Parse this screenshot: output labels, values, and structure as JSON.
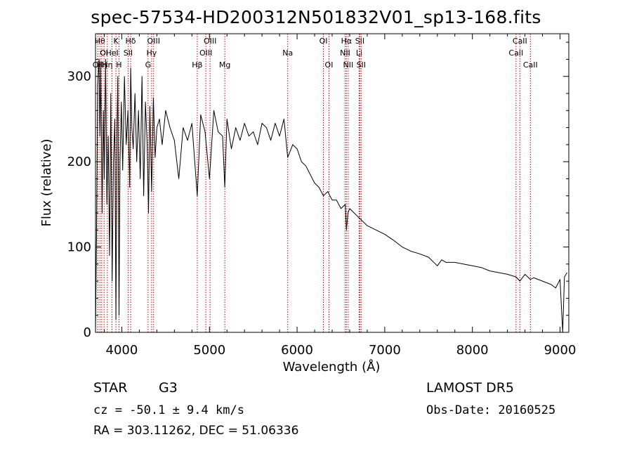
{
  "title": "spec-57534-HD200312N501832V01_sp13-168.fits",
  "info": {
    "object_type": "STAR",
    "subclass": "G3",
    "survey": "LAMOST DR5",
    "cz": "cz = -50.1 ± 9.4 km/s",
    "obs_date": "Obs-Date: 20160525",
    "coords": "RA = 303.11262, DEC =  51.06336"
  },
  "chart_data": {
    "type": "line",
    "xlabel": "Wavelength (Å)",
    "ylabel": "Flux (relative)",
    "xlim": [
      3700,
      9100
    ],
    "ylim": [
      0,
      350
    ],
    "xticks": [
      4000,
      5000,
      6000,
      7000,
      8000,
      9000
    ],
    "yticks": [
      0,
      100,
      200,
      300
    ],
    "grid": false,
    "line_color": "#000000",
    "marker_color": "#cc0000",
    "series": [
      {
        "x": [
          3700,
          3712,
          3725,
          3740,
          3750,
          3760,
          3775,
          3790,
          3800,
          3815,
          3830,
          3845,
          3860,
          3875,
          3890,
          3905,
          3920,
          3933,
          3945,
          3955,
          3968,
          3980,
          3995,
          4010,
          4030,
          4050,
          4070,
          4090,
          4101,
          4115,
          4130,
          4150,
          4170,
          4190,
          4210,
          4230,
          4250,
          4270,
          4290,
          4305,
          4320,
          4340,
          4360,
          4380,
          4400,
          4430,
          4460,
          4500,
          4550,
          4600,
          4650,
          4700,
          4750,
          4800,
          4861,
          4900,
          4950,
          5000,
          5050,
          5100,
          5150,
          5175,
          5200,
          5250,
          5300,
          5350,
          5400,
          5450,
          5500,
          5550,
          5600,
          5650,
          5700,
          5750,
          5800,
          5850,
          5893,
          5950,
          6000,
          6050,
          6100,
          6150,
          6200,
          6250,
          6300,
          6350,
          6400,
          6450,
          6500,
          6550,
          6563,
          6580,
          6600,
          6650,
          6700,
          6750,
          6800,
          6900,
          7000,
          7100,
          7200,
          7300,
          7400,
          7500,
          7600,
          7650,
          7700,
          7800,
          7900,
          8000,
          8100,
          8200,
          8300,
          8400,
          8498,
          8542,
          8600,
          8662,
          8700,
          8800,
          8900,
          8950,
          9000,
          9030,
          9050,
          9080
        ],
        "y": [
          0,
          120,
          290,
          320,
          230,
          310,
          140,
          260,
          180,
          320,
          150,
          230,
          90,
          280,
          60,
          200,
          250,
          15,
          240,
          300,
          20,
          200,
          270,
          190,
          300,
          220,
          260,
          170,
          310,
          240,
          215,
          280,
          200,
          260,
          180,
          300,
          160,
          270,
          220,
          140,
          265,
          165,
          275,
          205,
          240,
          250,
          220,
          260,
          240,
          225,
          180,
          240,
          225,
          245,
          160,
          255,
          235,
          180,
          260,
          235,
          230,
          170,
          250,
          215,
          240,
          225,
          245,
          230,
          235,
          220,
          245,
          240,
          225,
          245,
          230,
          250,
          205,
          220,
          215,
          200,
          195,
          185,
          175,
          170,
          160,
          165,
          155,
          155,
          145,
          150,
          120,
          140,
          145,
          140,
          135,
          130,
          125,
          120,
          115,
          108,
          100,
          95,
          92,
          88,
          78,
          85,
          82,
          82,
          80,
          78,
          76,
          72,
          70,
          68,
          65,
          60,
          68,
          62,
          64,
          60,
          56,
          52,
          62,
          0,
          65,
          70
        ]
      }
    ],
    "line_markers": [
      {
        "wavelength": 3727,
        "label": "OII",
        "row": 3
      },
      {
        "wavelength": 3750,
        "label": "Hθ",
        "row": 1
      },
      {
        "wavelength": 3771,
        "label": "Hη",
        "row": 3
      },
      {
        "wavelength": 3798,
        "label": "OI",
        "row": 2
      },
      {
        "wavelength": 3835,
        "label": "Hη",
        "row": 3
      },
      {
        "wavelength": 3889,
        "label": "HeI",
        "row": 2
      },
      {
        "wavelength": 3933,
        "label": "K",
        "row": 1
      },
      {
        "wavelength": 3968,
        "label": "H",
        "row": 3
      },
      {
        "wavelength": 4072,
        "label": "SII",
        "row": 2
      },
      {
        "wavelength": 4101,
        "label": "Hδ",
        "row": 1
      },
      {
        "wavelength": 4300,
        "label": "G",
        "row": 3
      },
      {
        "wavelength": 4340,
        "label": "Hγ",
        "row": 2
      },
      {
        "wavelength": 4363,
        "label": "OIII",
        "row": 1
      },
      {
        "wavelength": 4861,
        "label": "Hβ",
        "row": 3
      },
      {
        "wavelength": 4959,
        "label": "OIII",
        "row": 2
      },
      {
        "wavelength": 5007,
        "label": "OIII",
        "row": 1
      },
      {
        "wavelength": 5175,
        "label": "Mg",
        "row": 3
      },
      {
        "wavelength": 5893,
        "label": "Na",
        "row": 2
      },
      {
        "wavelength": 6300,
        "label": "OI",
        "row": 1
      },
      {
        "wavelength": 6364,
        "label": "OI",
        "row": 3
      },
      {
        "wavelength": 6548,
        "label": "NII",
        "row": 2
      },
      {
        "wavelength": 6563,
        "label": "Hα",
        "row": 1
      },
      {
        "wavelength": 6583,
        "label": "NII",
        "row": 3
      },
      {
        "wavelength": 6708,
        "label": "Li",
        "row": 2
      },
      {
        "wavelength": 6716,
        "label": "SII",
        "row": 1
      },
      {
        "wavelength": 6731,
        "label": "SII",
        "row": 3
      },
      {
        "wavelength": 8498,
        "label": "CaII",
        "row": 2
      },
      {
        "wavelength": 8542,
        "label": "CaII",
        "row": 1
      },
      {
        "wavelength": 8662,
        "label": "CaII",
        "row": 3
      }
    ]
  }
}
